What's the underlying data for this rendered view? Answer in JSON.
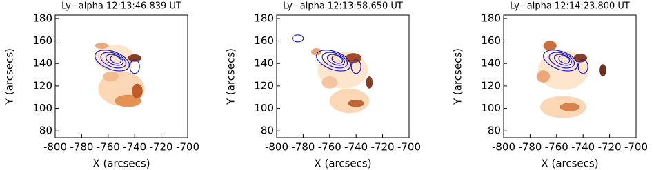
{
  "chart_data": [
    {
      "type": "image",
      "title": "Ly−alpha 12:13:46.839 UT",
      "xlabel": "X (arcsecs)",
      "ylabel": "Y (arcsecs)",
      "xlim": [
        -800,
        -700
      ],
      "ylim": [
        74,
        183
      ],
      "xticks": [
        -800,
        -780,
        -760,
        -740,
        -720,
        -700
      ],
      "yticks": [
        80,
        100,
        120,
        140,
        160,
        180
      ],
      "contour_color": "#1c1ccc"
    },
    {
      "type": "image",
      "title": "Ly−alpha 12:13:58.650 UT",
      "xlabel": "X (arcsecs)",
      "ylabel": "Y (arcsecs)",
      "xlim": [
        -800,
        -700
      ],
      "ylim": [
        74,
        183
      ],
      "xticks": [
        -800,
        -780,
        -760,
        -740,
        -720,
        -700
      ],
      "yticks": [
        80,
        100,
        120,
        140,
        160,
        180
      ],
      "contour_color": "#1c1ccc"
    },
    {
      "type": "image",
      "title": "Ly−alpha 12:14:23.800 UT",
      "xlabel": "X (arcsecs)",
      "ylabel": "Y (arcsecs)",
      "xlim": [
        -800,
        -700
      ],
      "ylim": [
        74,
        183
      ],
      "xticks": [
        -800,
        -780,
        -760,
        -740,
        -720,
        -700
      ],
      "yticks": [
        80,
        100,
        120,
        140,
        160,
        180
      ],
      "contour_color": "#1c1ccc"
    }
  ]
}
